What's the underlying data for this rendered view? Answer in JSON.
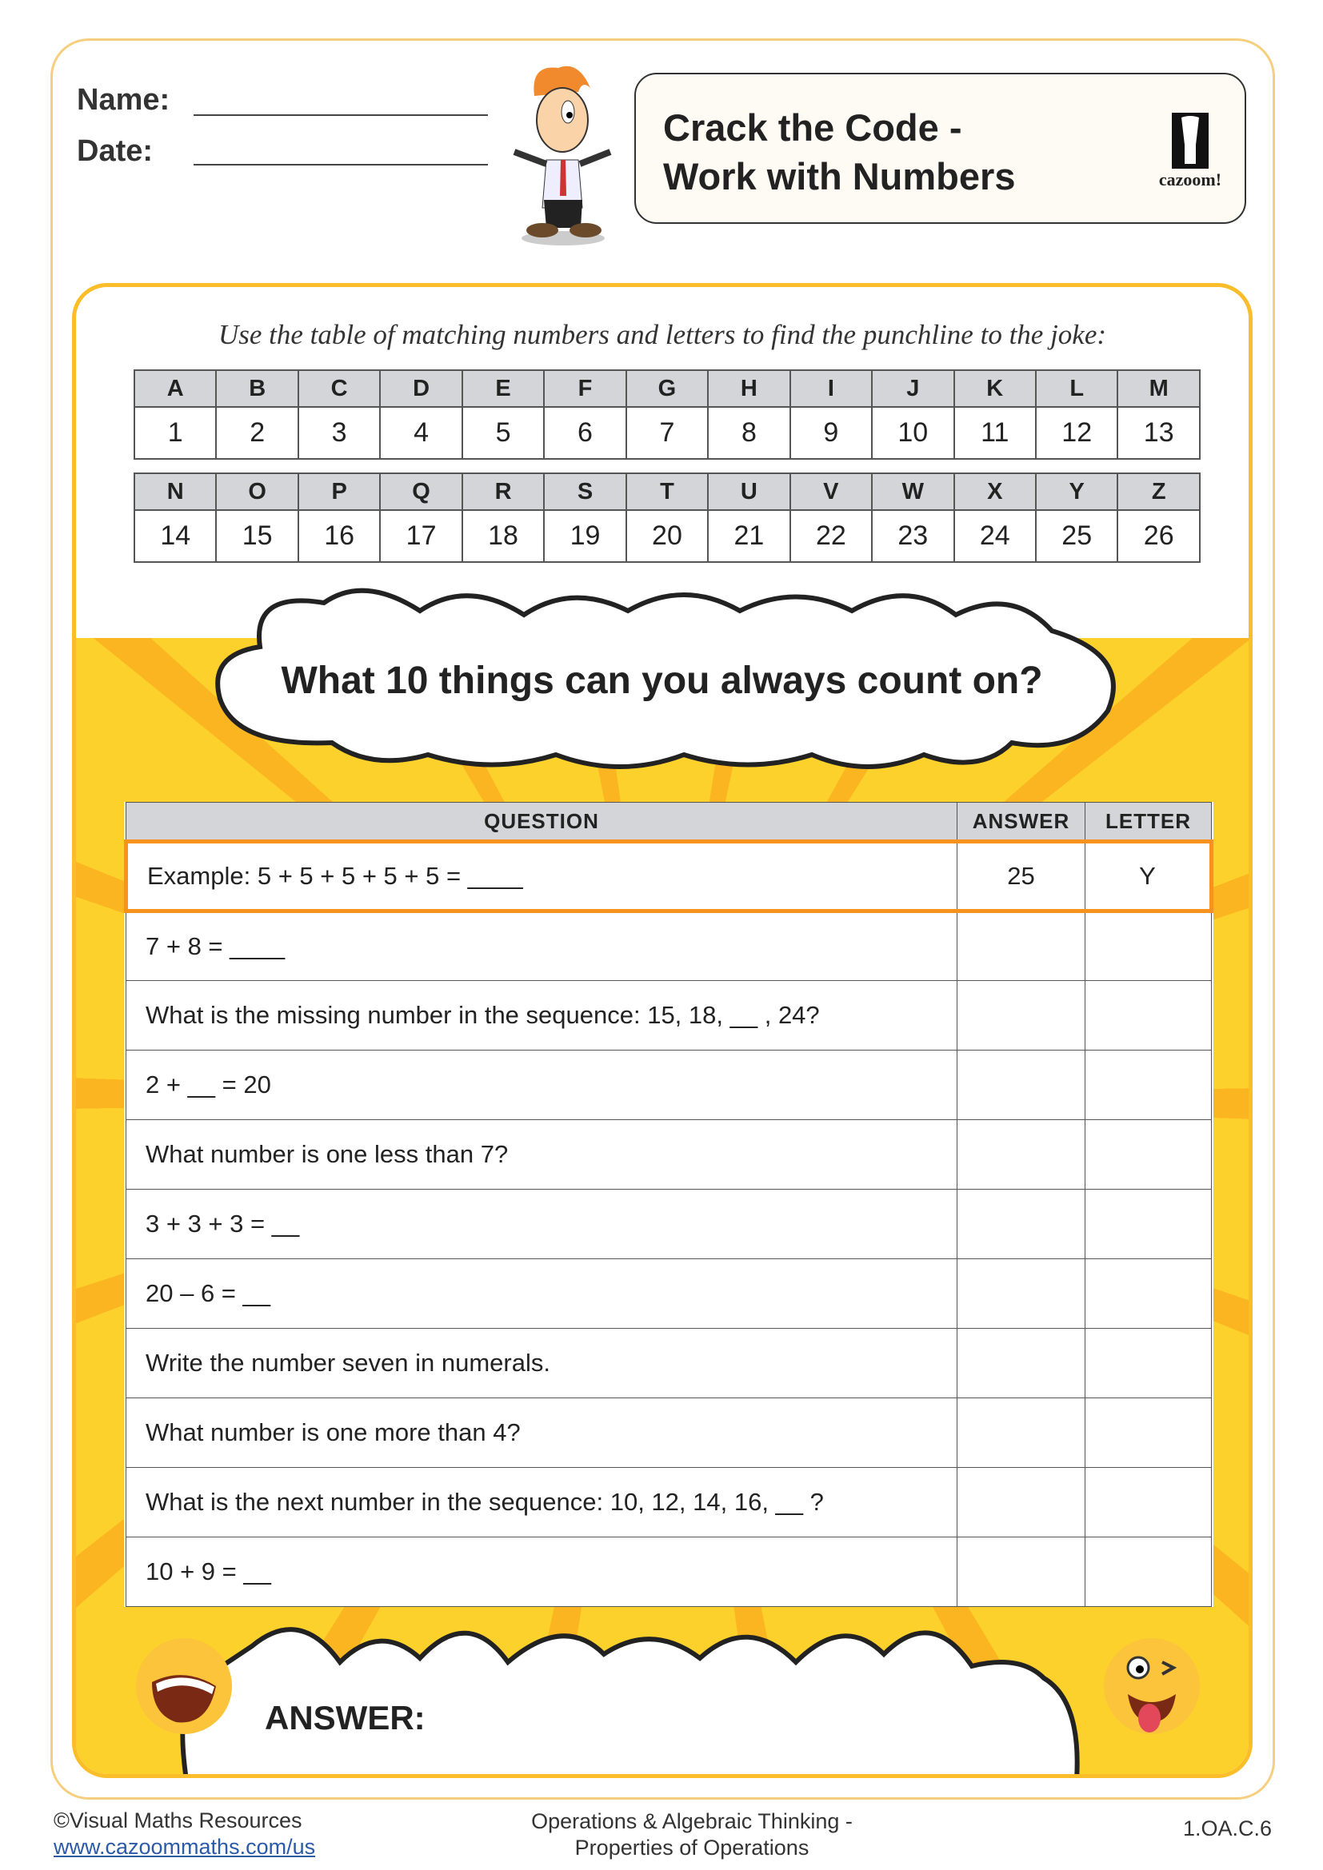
{
  "header": {
    "name_label": "Name:",
    "date_label": "Date:"
  },
  "title": {
    "line1": "Crack the Code -",
    "line2": "Work with Numbers",
    "logo_text": "cazoom!"
  },
  "instruction": "Use the table of matching numbers and letters to find the punchline to the joke:",
  "code_table": [
    {
      "letters": [
        "A",
        "B",
        "C",
        "D",
        "E",
        "F",
        "G",
        "H",
        "I",
        "J",
        "K",
        "L",
        "M"
      ],
      "numbers": [
        "1",
        "2",
        "3",
        "4",
        "5",
        "6",
        "7",
        "8",
        "9",
        "10",
        "11",
        "12",
        "13"
      ]
    },
    {
      "letters": [
        "N",
        "O",
        "P",
        "Q",
        "R",
        "S",
        "T",
        "U",
        "V",
        "W",
        "X",
        "Y",
        "Z"
      ],
      "numbers": [
        "14",
        "15",
        "16",
        "17",
        "18",
        "19",
        "20",
        "21",
        "22",
        "23",
        "24",
        "25",
        "26"
      ]
    }
  ],
  "joke": "What 10 things can you always count on?",
  "questions": {
    "headers": [
      "QUESTION",
      "ANSWER",
      "LETTER"
    ],
    "rows": [
      {
        "q": "Example:  5 + 5 + 5 + 5 + 5  =  ____",
        "a": "25",
        "l": "Y"
      },
      {
        "q": "7 + 8  =  ____",
        "a": "",
        "l": ""
      },
      {
        "q": "What is the missing number in the sequence:  15, 18, __ , 24?",
        "a": "",
        "l": ""
      },
      {
        "q": "2 + __ = 20",
        "a": "",
        "l": ""
      },
      {
        "q": "What number is one less than 7?",
        "a": "",
        "l": ""
      },
      {
        "q": "3 + 3 + 3 = __",
        "a": "",
        "l": ""
      },
      {
        "q": "20 – 6 = __",
        "a": "",
        "l": ""
      },
      {
        "q": "Write the number seven in numerals.",
        "a": "",
        "l": ""
      },
      {
        "q": "What number is one more than 4?",
        "a": "",
        "l": ""
      },
      {
        "q": "What is the next number in the sequence:  10, 12, 14, 16, __ ?",
        "a": "",
        "l": ""
      },
      {
        "q": "10 + 9 = __",
        "a": "",
        "l": ""
      }
    ]
  },
  "answer_label": "ANSWER:",
  "footer": {
    "copyright": "©Visual Maths Resources",
    "link": "www.cazoommaths.com/us",
    "topic_line1": "Operations & Algebraic Thinking -",
    "topic_line2": "Properties of Operations",
    "standard": "1.OA.C.6"
  },
  "colors": {
    "border": "#f6cf7e",
    "panel": "#fbbd2a",
    "highlight": "#f7921e",
    "header_gray": "#d3d5d9"
  }
}
